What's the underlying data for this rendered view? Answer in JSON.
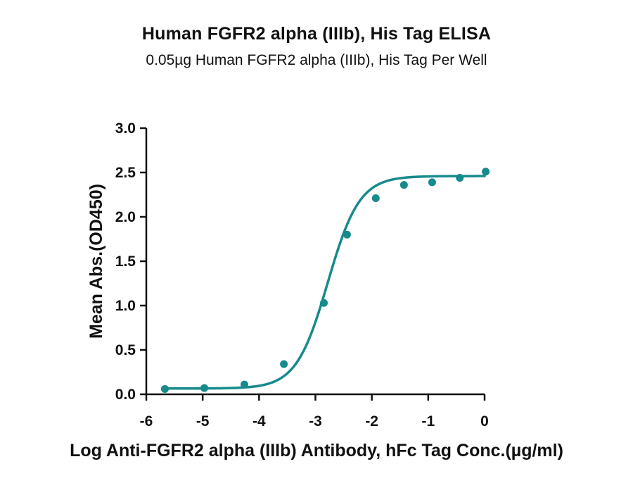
{
  "title": "Human FGFR2 alpha (IIIb), His Tag ELISA",
  "subtitle": "0.05µg Human FGFR2 alpha (IIIb), His Tag Per Well",
  "colors": {
    "series": "#178a8c",
    "axis": "#111111"
  },
  "chart_data": {
    "type": "scatter",
    "title": "Human FGFR2 alpha (IIIb), His Tag ELISA",
    "subtitle": "0.05µg Human FGFR2 alpha (IIIb), His Tag Per Well",
    "xlabel": "Log Anti-FGFR2 alpha (IIIb) Antibody, hFc Tag Conc.(µg/ml)",
    "ylabel": "Mean Abs.(OD450)",
    "xlim": [
      -6,
      0
    ],
    "ylim": [
      0,
      3.0
    ],
    "xticks": [
      "-6",
      "-5",
      "-4",
      "-3",
      "-2",
      "-1",
      "0"
    ],
    "yticks": [
      "0.0",
      "0.5",
      "1.0",
      "1.5",
      "2.0",
      "2.5",
      "3.0"
    ],
    "grid": false,
    "series": [
      {
        "x": [
          -5.67,
          -4.97,
          -4.26,
          -3.56,
          -2.85,
          -2.44,
          -1.93,
          -1.43,
          -0.93,
          -0.44,
          0.02
        ],
        "y": [
          0.06,
          0.07,
          0.11,
          0.34,
          1.03,
          1.8,
          2.21,
          2.36,
          2.39,
          2.44,
          2.51
        ]
      }
    ],
    "fit": {
      "type": "4PL",
      "bottom": 0.065,
      "top": 2.46,
      "log_ec50": -2.78,
      "hill_slope": 1.55
    }
  }
}
